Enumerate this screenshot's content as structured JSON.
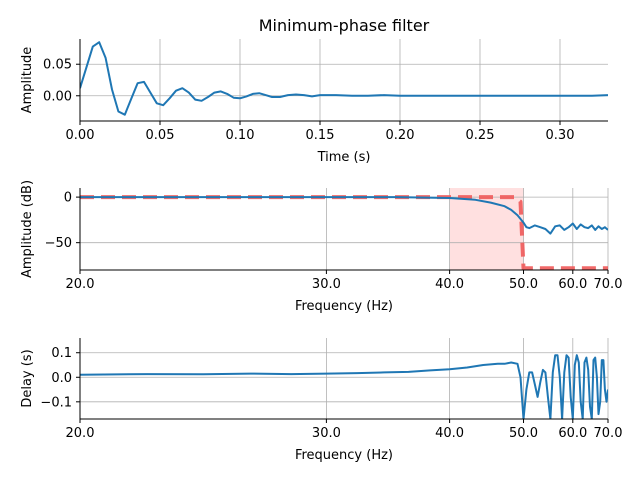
{
  "figure": {
    "title": "Minimum-phase filter"
  },
  "chart_data": [
    {
      "type": "line",
      "panel": "impulse-response",
      "xlabel": "Time (s)",
      "ylabel": "Amplitude",
      "xlim": [
        0.0,
        0.33
      ],
      "ylim": [
        -0.04,
        0.09
      ],
      "x_ticks": [
        0.0,
        0.05,
        0.1,
        0.15,
        0.2,
        0.25,
        0.3
      ],
      "x_tick_labels": [
        "0.00",
        "0.05",
        "0.10",
        "0.15",
        "0.20",
        "0.25",
        "0.30"
      ],
      "y_ticks": [
        0.0,
        0.05
      ],
      "y_tick_labels": [
        "0.00",
        "0.05"
      ],
      "grid": true,
      "color": "#1f77b4",
      "series": [
        {
          "x": [
            0.0,
            0.004,
            0.008,
            0.012,
            0.016,
            0.02,
            0.024,
            0.028,
            0.032,
            0.036,
            0.04,
            0.044,
            0.048,
            0.052,
            0.056,
            0.06,
            0.064,
            0.068,
            0.072,
            0.076,
            0.08,
            0.084,
            0.088,
            0.092,
            0.096,
            0.1,
            0.104,
            0.108,
            0.112,
            0.116,
            0.12,
            0.125,
            0.13,
            0.135,
            0.14,
            0.145,
            0.15,
            0.16,
            0.17,
            0.18,
            0.19,
            0.2,
            0.22,
            0.24,
            0.26,
            0.28,
            0.3,
            0.32,
            0.33
          ],
          "values": [
            0.012,
            0.045,
            0.078,
            0.085,
            0.06,
            0.01,
            -0.025,
            -0.03,
            -0.005,
            0.02,
            0.022,
            0.005,
            -0.012,
            -0.015,
            -0.004,
            0.008,
            0.012,
            0.005,
            -0.006,
            -0.008,
            -0.002,
            0.005,
            0.007,
            0.003,
            -0.003,
            -0.004,
            -0.001,
            0.003,
            0.004,
            0.001,
            -0.002,
            -0.002,
            0.001,
            0.002,
            0.001,
            -0.001,
            0.001,
            0.001,
            0.0,
            0.0,
            0.001,
            0.0,
            0.0,
            0.0,
            0.0,
            0.0,
            0.0,
            0.0,
            0.001
          ]
        }
      ]
    },
    {
      "type": "line",
      "panel": "magnitude-response",
      "xlabel": "Frequency (Hz)",
      "ylabel": "Amplitude (dB)",
      "xscale": "reciprocal",
      "xlim": [
        20.0,
        70.0
      ],
      "ylim": [
        -80,
        10
      ],
      "x_ticks": [
        20.0,
        30.0,
        40.0,
        50.0,
        60.0,
        70.0
      ],
      "x_tick_labels": [
        "20.0",
        "30.0",
        "40.0",
        "50.0",
        "60.0",
        "70.0"
      ],
      "y_ticks": [
        -50,
        0
      ],
      "y_tick_labels": [
        "−50",
        "0"
      ],
      "grid": true,
      "highlight_band": {
        "x": [
          40,
          50
        ],
        "color": "#ffcccc"
      },
      "series": [
        {
          "role": "desired",
          "style": "dashed",
          "color": "#f05a5a",
          "x": [
            20,
            48.5,
            49.5,
            50,
            70
          ],
          "values": [
            0,
            0,
            -5,
            -78,
            -78
          ]
        },
        {
          "role": "actual",
          "style": "solid",
          "color": "#1f77b4",
          "x": [
            20,
            25,
            30,
            35,
            40,
            43,
            45,
            47,
            48,
            49,
            50,
            50.5,
            51,
            52,
            53,
            54,
            55,
            56,
            57,
            58,
            59,
            60,
            61,
            62,
            63,
            64,
            65,
            66,
            67,
            68,
            69,
            70
          ],
          "values": [
            0,
            0,
            0,
            0,
            -1,
            -3,
            -6,
            -10,
            -14,
            -20,
            -28,
            -33,
            -34,
            -31,
            -33,
            -35,
            -40,
            -32,
            -31,
            -36,
            -33,
            -29,
            -35,
            -30,
            -33,
            -34,
            -31,
            -36,
            -32,
            -35,
            -33,
            -36
          ]
        }
      ]
    },
    {
      "type": "line",
      "panel": "group-delay",
      "xlabel": "Frequency (Hz)",
      "ylabel": "Delay (s)",
      "xscale": "reciprocal",
      "xlim": [
        20.0,
        70.0
      ],
      "ylim": [
        -0.17,
        0.16
      ],
      "x_ticks": [
        20.0,
        30.0,
        40.0,
        50.0,
        60.0,
        70.0
      ],
      "x_tick_labels": [
        "20.0",
        "30.0",
        "40.0",
        "50.0",
        "60.0",
        "70.0"
      ],
      "y_ticks": [
        -0.1,
        0.0,
        0.1
      ],
      "y_tick_labels": [
        "−0.1",
        "0.0",
        "0.1"
      ],
      "grid": true,
      "color": "#1f77b4",
      "series": [
        {
          "x": [
            20,
            22,
            24,
            26,
            28,
            30,
            32,
            34,
            36,
            38,
            40,
            42,
            44,
            46,
            47,
            48,
            49,
            49.5,
            50,
            50.5,
            51,
            51.5,
            52,
            52.5,
            53,
            53.5,
            54,
            54.5,
            55,
            55.5,
            56,
            56.5,
            57,
            57.5,
            58,
            58.5,
            59,
            59.5,
            60,
            60.5,
            61,
            61.5,
            62,
            62.5,
            63,
            63.5,
            64,
            64.5,
            65,
            65.5,
            66,
            66.5,
            67,
            67.5,
            68,
            68.5,
            69,
            69.5,
            70
          ],
          "values": [
            0.01,
            0.013,
            0.012,
            0.015,
            0.013,
            0.015,
            0.017,
            0.02,
            0.022,
            0.028,
            0.033,
            0.04,
            0.05,
            0.055,
            0.055,
            0.06,
            0.055,
            0.0,
            -0.17,
            -0.05,
            0.02,
            0.02,
            -0.03,
            -0.08,
            -0.02,
            0.03,
            0.02,
            -0.08,
            -0.17,
            0.02,
            0.09,
            0.09,
            0.0,
            -0.17,
            0.02,
            0.09,
            0.08,
            -0.08,
            -0.17,
            0.05,
            0.09,
            0.06,
            -0.1,
            -0.17,
            0.06,
            0.08,
            0.03,
            -0.12,
            -0.17,
            0.07,
            0.08,
            0.0,
            -0.15,
            -0.1,
            0.07,
            0.07,
            -0.05,
            -0.1,
            -0.05
          ]
        }
      ]
    }
  ]
}
